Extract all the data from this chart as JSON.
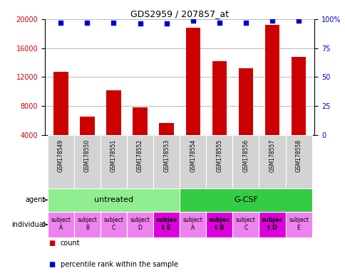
{
  "title": "GDS2959 / 207857_at",
  "samples": [
    "GSM178549",
    "GSM178550",
    "GSM178551",
    "GSM178552",
    "GSM178553",
    "GSM178554",
    "GSM178555",
    "GSM178556",
    "GSM178557",
    "GSM178558"
  ],
  "counts": [
    12700,
    6600,
    10200,
    7800,
    5700,
    18800,
    14200,
    13200,
    19200,
    14800
  ],
  "percentile_ranks": [
    97,
    97,
    97,
    96,
    96,
    99,
    97,
    97,
    99,
    99
  ],
  "bar_color": "#cc0000",
  "dot_color": "#0000cc",
  "ylim_left": [
    4000,
    20000
  ],
  "yticks_left": [
    4000,
    8000,
    12000,
    16000,
    20000
  ],
  "ylim_right": [
    0,
    100
  ],
  "yticks_right": [
    0,
    25,
    50,
    75,
    100
  ],
  "agent_groups": [
    {
      "label": "untreated",
      "start": 0,
      "end": 5,
      "color": "#90ee90"
    },
    {
      "label": "G-CSF",
      "start": 5,
      "end": 10,
      "color": "#33cc44"
    }
  ],
  "individual_labels": [
    {
      "line1": "subject",
      "line2": "A",
      "idx": 0,
      "highlight": false
    },
    {
      "line1": "subject",
      "line2": "B",
      "idx": 1,
      "highlight": false
    },
    {
      "line1": "subject",
      "line2": "C",
      "idx": 2,
      "highlight": false
    },
    {
      "line1": "subject",
      "line2": "D",
      "idx": 3,
      "highlight": false
    },
    {
      "line1": "subjec",
      "line2": "t E",
      "idx": 4,
      "highlight": true
    },
    {
      "line1": "subject",
      "line2": "A",
      "idx": 5,
      "highlight": false
    },
    {
      "line1": "subjec",
      "line2": "t B",
      "idx": 6,
      "highlight": true
    },
    {
      "line1": "subject",
      "line2": "C",
      "idx": 7,
      "highlight": false
    },
    {
      "line1": "subjec",
      "line2": "t D",
      "idx": 8,
      "highlight": true
    },
    {
      "line1": "subject",
      "line2": "E",
      "idx": 9,
      "highlight": false
    }
  ],
  "individual_bg_normal": "#ee82ee",
  "individual_bg_highlight": "#dd00dd",
  "sample_bg": "#d3d3d3",
  "n_samples": 10,
  "legend_count_color": "#cc0000",
  "legend_dot_color": "#0000cc",
  "legend_count_label": "count",
  "legend_dot_label": "percentile rank within the sample",
  "agent_label": "agent",
  "individual_label": "individual"
}
